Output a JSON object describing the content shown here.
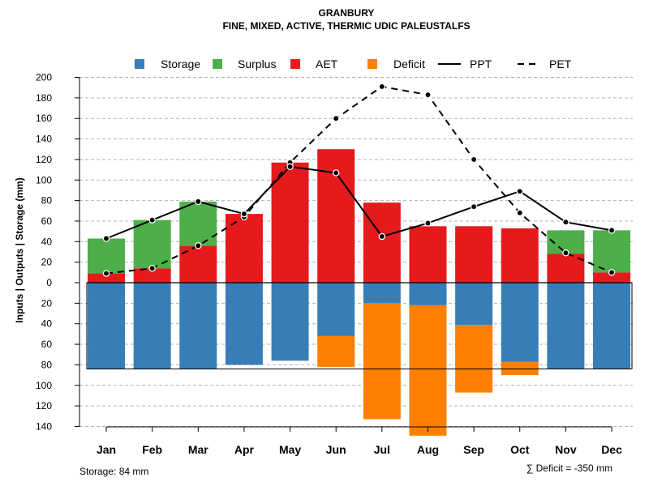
{
  "chart_data": {
    "type": "bar",
    "title": "GRANBURY",
    "subtitle": "FINE, MIXED, ACTIVE, THERMIC UDIC PALEUSTALFS",
    "ylabel": "Inputs | Outputs | Storage    (mm)",
    "ylim": [
      -140,
      200
    ],
    "y_ticks": [
      200,
      180,
      160,
      140,
      120,
      100,
      80,
      60,
      40,
      20,
      0,
      -20,
      -40,
      -60,
      -80,
      -100,
      -120,
      -140
    ],
    "y_tick_labels": [
      "200",
      "180",
      "160",
      "140",
      "120",
      "100",
      "80",
      "60",
      "40",
      "20",
      "0",
      "20",
      "40",
      "60",
      "80",
      "100",
      "120",
      "140"
    ],
    "categories": [
      "Jan",
      "Feb",
      "Mar",
      "Apr",
      "May",
      "Jun",
      "Jul",
      "Aug",
      "Sep",
      "Oct",
      "Nov",
      "Dec"
    ],
    "series": [
      {
        "name": "Storage",
        "color": "#377eb8",
        "values": [
          84,
          84,
          84,
          80,
          76,
          52,
          20,
          22,
          41,
          77,
          84,
          84
        ]
      },
      {
        "name": "Surplus",
        "color": "#4daf4a",
        "values": [
          34,
          47,
          43,
          0,
          0,
          0,
          0,
          0,
          0,
          0,
          23,
          41
        ]
      },
      {
        "name": "AET",
        "color": "#e41a1c",
        "values": [
          9,
          14,
          36,
          67,
          117,
          130,
          78,
          55,
          55,
          53,
          28,
          10
        ]
      },
      {
        "name": "Deficit",
        "color": "#ff7f00",
        "values": [
          0,
          0,
          0,
          0,
          0,
          30,
          113,
          127,
          66,
          13,
          0,
          0
        ]
      },
      {
        "name": "PPT",
        "color": "#000000",
        "line": "solid",
        "values": [
          43,
          61,
          79,
          67,
          113,
          107,
          45,
          58,
          74,
          89,
          59,
          51
        ]
      },
      {
        "name": "PET",
        "color": "#000000",
        "line": "dashed",
        "values": [
          9,
          14,
          36,
          64,
          117,
          160,
          191,
          183,
          120,
          68,
          29,
          10
        ]
      }
    ],
    "soil_storage_capacity": 84,
    "legend_position": "top",
    "grid": true,
    "footer_left": "Storage: 84 mm",
    "footer_right": "∑ Deficit = -350 mm"
  }
}
